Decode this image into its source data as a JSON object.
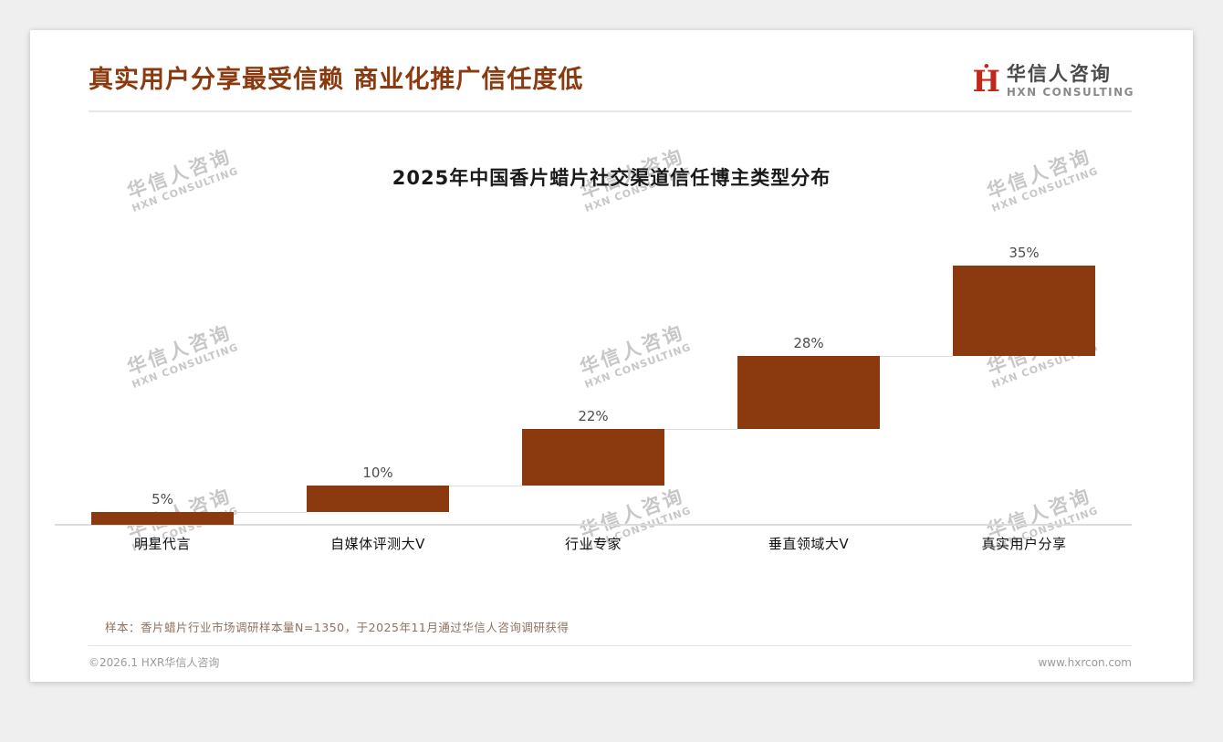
{
  "page": {
    "title": "真实用户分享最受信赖 商业化推广信任度低",
    "logo": {
      "cn": "华信人咨询",
      "en": "HXN CONSULTING",
      "mark": "Ḣ"
    },
    "watermark": {
      "cn": "华信人咨询",
      "en": "HXN CONSULTING"
    },
    "footer": {
      "sample_note": "样本：香片蜡片行业市场调研样本量N=1350，于2025年11月通过华信人咨询调研获得",
      "copyright": "©2026.1 HXR华信人咨询",
      "website": "www.hxrcon.com"
    }
  },
  "chart_data": {
    "type": "bar",
    "variant": "waterfall-staircase",
    "title": "2025年中国香片蜡片社交渠道信任博主类型分布",
    "categories": [
      "明星代言",
      "自媒体评测大V",
      "行业专家",
      "垂直领域大V",
      "真实用户分享"
    ],
    "values": [
      5,
      10,
      22,
      28,
      35
    ],
    "value_labels": [
      "5%",
      "10%",
      "22%",
      "28%",
      "35%"
    ],
    "cumulative_starts": [
      0,
      5,
      15,
      37,
      65
    ],
    "ylim": [
      0,
      100
    ],
    "bar_color": "#8B3A0F",
    "baseline_color": "#DCDCDC",
    "grid": false,
    "legend": "none"
  },
  "colors": {
    "title_accent": "#8B3A0F",
    "logo_mark_red": "#C2271B",
    "watermark_gray": "#C7C7C7",
    "sample_note_brown": "#8C7260",
    "footer_gray": "#9A9A9A"
  }
}
